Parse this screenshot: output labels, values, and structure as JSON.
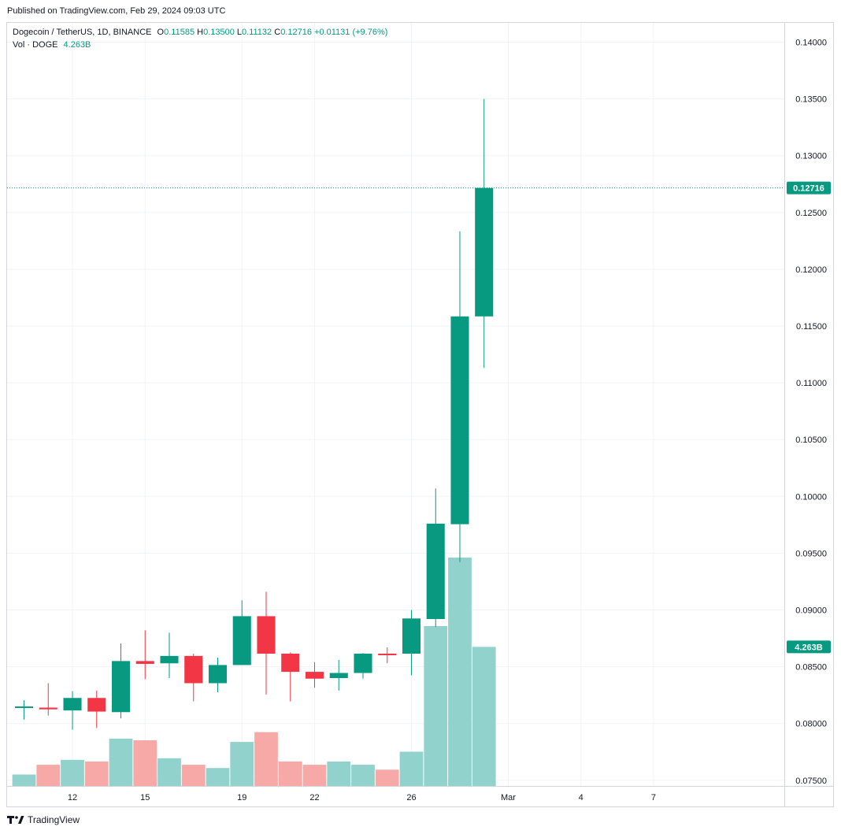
{
  "header": {
    "published": "Published on TradingView.com, Feb 29, 2024 09:03 UTC"
  },
  "legend": {
    "symbol": "Dogecoin / TetherUS, 1D, BINANCE",
    "o_label": "O",
    "o_value": "0.11585",
    "h_label": "H",
    "h_value": "0.13500",
    "l_label": "L",
    "l_value": "0.11132",
    "c_label": "C",
    "c_value": "0.12716",
    "change": "+0.01131 (+9.76%)",
    "vol_label": "Vol · DOGE",
    "vol_value": "4.263B"
  },
  "footer": {
    "logo_text": "TradingView"
  },
  "colors": {
    "up": "#089981",
    "down": "#f23645",
    "vol_up": "#92d2cc",
    "vol_down": "#f7a9a7",
    "grid": "#f0f3fa"
  },
  "chart_data": {
    "type": "candlestick",
    "price_axis": {
      "ticks": [
        "0.14000",
        "0.13500",
        "0.13000",
        "0.12500",
        "0.12000",
        "0.11500",
        "0.11000",
        "0.10500",
        "0.10000",
        "0.09500",
        "0.09000",
        "0.08500",
        "0.08000",
        "0.07500"
      ],
      "range": [
        0.0745,
        0.1417
      ],
      "last_price_label": "0.12716",
      "last_price": 0.12716,
      "volume_label": "4.263B"
    },
    "x_axis": {
      "ticks": [
        {
          "label": "12",
          "day": 12
        },
        {
          "label": "15",
          "day": 15
        },
        {
          "label": "19",
          "day": 19
        },
        {
          "label": "22",
          "day": 22
        },
        {
          "label": "26",
          "day": 26
        },
        {
          "label": "Mar",
          "day": 30
        },
        {
          "label": "4",
          "day": 33
        },
        {
          "label": "7",
          "day": 36
        }
      ],
      "range_days": [
        9.3,
        41.4
      ]
    },
    "candles": [
      {
        "day": 10,
        "o": 0.08145,
        "h": 0.08205,
        "l": 0.08035,
        "c": 0.0815,
        "v": 0.35
      },
      {
        "day": 11,
        "o": 0.0814,
        "h": 0.08355,
        "l": 0.0807,
        "c": 0.08125,
        "v": 0.65
      },
      {
        "day": 12,
        "o": 0.08115,
        "h": 0.08285,
        "l": 0.07945,
        "c": 0.08225,
        "v": 0.8
      },
      {
        "day": 13,
        "o": 0.08225,
        "h": 0.0829,
        "l": 0.0796,
        "c": 0.08105,
        "v": 0.75
      },
      {
        "day": 14,
        "o": 0.081,
        "h": 0.08705,
        "l": 0.08045,
        "c": 0.0855,
        "v": 1.45
      },
      {
        "day": 15,
        "o": 0.0855,
        "h": 0.0882,
        "l": 0.0839,
        "c": 0.08525,
        "v": 1.4
      },
      {
        "day": 16,
        "o": 0.0853,
        "h": 0.088,
        "l": 0.084,
        "c": 0.08595,
        "v": 0.85
      },
      {
        "day": 17,
        "o": 0.08595,
        "h": 0.08615,
        "l": 0.08195,
        "c": 0.08355,
        "v": 0.65
      },
      {
        "day": 18,
        "o": 0.08355,
        "h": 0.0858,
        "l": 0.08275,
        "c": 0.08515,
        "v": 0.55
      },
      {
        "day": 19,
        "o": 0.08515,
        "h": 0.09085,
        "l": 0.08515,
        "c": 0.08945,
        "v": 1.35
      },
      {
        "day": 20,
        "o": 0.08945,
        "h": 0.0916,
        "l": 0.08255,
        "c": 0.08615,
        "v": 1.65
      },
      {
        "day": 21,
        "o": 0.08615,
        "h": 0.08625,
        "l": 0.08195,
        "c": 0.08455,
        "v": 0.75
      },
      {
        "day": 22,
        "o": 0.08455,
        "h": 0.0854,
        "l": 0.08315,
        "c": 0.08395,
        "v": 0.65
      },
      {
        "day": 23,
        "o": 0.084,
        "h": 0.0856,
        "l": 0.0829,
        "c": 0.08445,
        "v": 0.75
      },
      {
        "day": 24,
        "o": 0.08445,
        "h": 0.0862,
        "l": 0.08395,
        "c": 0.08615,
        "v": 0.65
      },
      {
        "day": 25,
        "o": 0.08615,
        "h": 0.0867,
        "l": 0.0853,
        "c": 0.0861,
        "v": 0.5
      },
      {
        "day": 26,
        "o": 0.08615,
        "h": 0.09,
        "l": 0.08425,
        "c": 0.08925,
        "v": 1.05
      },
      {
        "day": 27,
        "o": 0.0892,
        "h": 0.1007,
        "l": 0.0885,
        "c": 0.0976,
        "v": 4.9
      },
      {
        "day": 28,
        "o": 0.09755,
        "h": 0.12335,
        "l": 0.0942,
        "c": 0.11585,
        "v": 7.0
      },
      {
        "day": 29,
        "o": 0.11585,
        "h": 0.135,
        "l": 0.11132,
        "c": 0.12716,
        "v": 4.263
      }
    ]
  }
}
